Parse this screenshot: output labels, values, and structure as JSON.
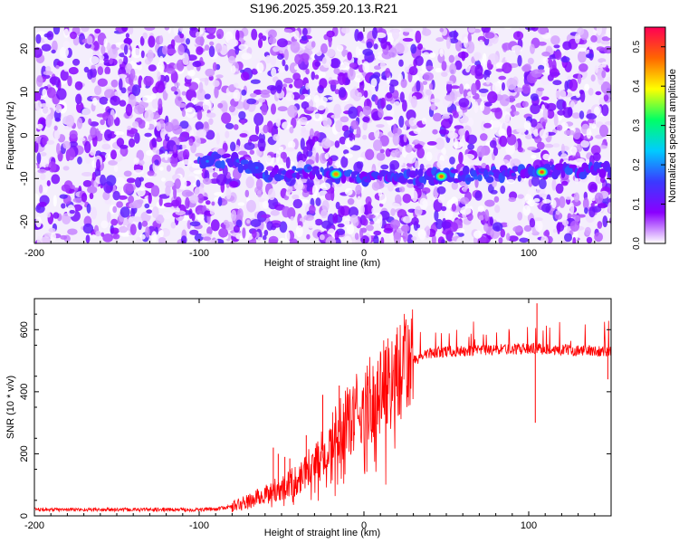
{
  "title": "S196.2025.359.20.13.R21",
  "chart_data": [
    {
      "type": "heatmap",
      "title": "S196.2025.359.20.13.R21",
      "xlabel": "Height of straight line (km)",
      "ylabel": "Frequency (Hz)",
      "xlim": [
        -200,
        150
      ],
      "ylim": [
        -25,
        25
      ],
      "xticks": [
        -200,
        -100,
        0,
        100
      ],
      "yticks": [
        -20,
        -10,
        0,
        10,
        20
      ],
      "colorbar": {
        "label": "Normalized spectral amplitude",
        "range": [
          0,
          0.55
        ],
        "ticks": [
          0.0,
          0.1,
          0.2,
          0.3,
          0.4,
          0.5
        ],
        "colors": [
          "#ffffff",
          "#8a00ff",
          "#3a3aff",
          "#00ccff",
          "#00ff66",
          "#ffff00",
          "#ff6600",
          "#ff0055"
        ]
      },
      "ridge": {
        "description_points": [
          [
            -100,
            -6
          ],
          [
            -80,
            -5.5
          ],
          [
            -60,
            -9
          ],
          [
            -40,
            -8.5
          ],
          [
            -20,
            -9
          ],
          [
            0,
            -10
          ],
          [
            20,
            -9.5
          ],
          [
            45,
            -9.5
          ],
          [
            80,
            -9
          ],
          [
            110,
            -8.5
          ],
          [
            150,
            -8
          ]
        ],
        "hotspots": [
          {
            "x": -17,
            "y": -9,
            "amplitude": 0.45
          },
          {
            "x": 47,
            "y": -9.5,
            "amplitude": 0.48
          },
          {
            "x": 108,
            "y": -8.5,
            "amplitude": 0.5
          },
          {
            "x": -95,
            "y": -6,
            "amplitude": 0.2
          },
          {
            "x": -65,
            "y": -7.5,
            "amplitude": 0.18
          }
        ]
      }
    },
    {
      "type": "line",
      "xlabel": "Height of straight line (km)",
      "ylabel": "SNR (10 * v/v)",
      "xlim": [
        -200,
        150
      ],
      "ylim": [
        0,
        700
      ],
      "xticks": [
        -200,
        -100,
        0,
        100
      ],
      "yticks": [
        0,
        200,
        400,
        600
      ],
      "series": [
        {
          "color": "#ff0000",
          "points": [
            [
              -200,
              20
            ],
            [
              -150,
              20
            ],
            [
              -100,
              20
            ],
            [
              -90,
              22
            ],
            [
              -80,
              30
            ],
            [
              -70,
              45
            ],
            [
              -60,
              70
            ],
            [
              -50,
              90
            ],
            [
              -40,
              120
            ],
            [
              -30,
              180
            ],
            [
              -20,
              240
            ],
            [
              -10,
              300
            ],
            [
              0,
              360
            ],
            [
              10,
              410
            ],
            [
              20,
              460
            ],
            [
              30,
              500
            ],
            [
              40,
              525
            ],
            [
              50,
              530
            ],
            [
              60,
              530
            ],
            [
              80,
              535
            ],
            [
              100,
              540
            ],
            [
              120,
              535
            ],
            [
              150,
              530
            ]
          ],
          "spikes": [
            [
              -55,
              220
            ],
            [
              -52,
              200
            ],
            [
              -48,
              190
            ],
            [
              -45,
              185
            ],
            [
              -35,
              260
            ],
            [
              -25,
              390
            ],
            [
              -15,
              420
            ],
            [
              105,
              685
            ],
            [
              104,
              300
            ],
            [
              148,
              440
            ]
          ]
        }
      ]
    }
  ]
}
